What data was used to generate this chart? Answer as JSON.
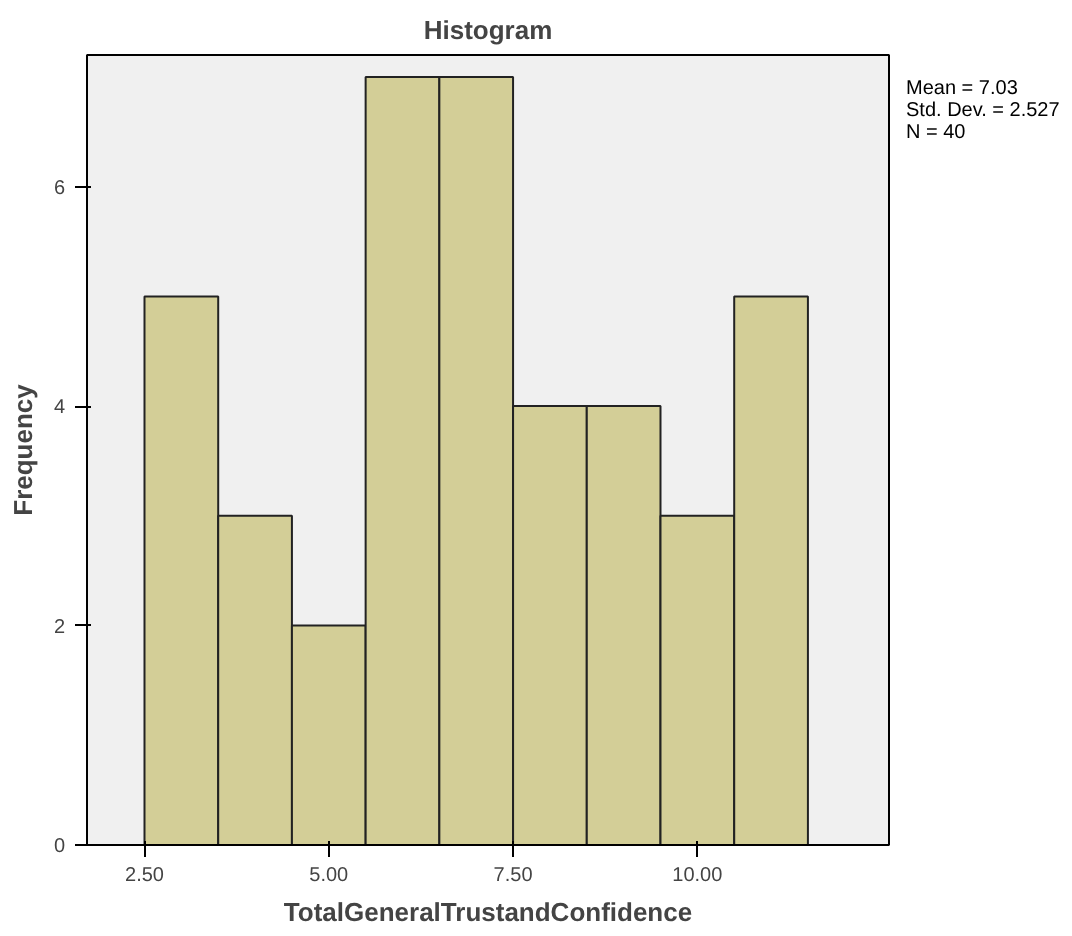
{
  "chart_data": {
    "type": "histogram",
    "title": "Histogram",
    "xlabel": "TotalGeneralTrustandConfidence",
    "ylabel": "Frequency",
    "bins": [
      2.5,
      3.5,
      4.5,
      5.5,
      6.5,
      7.5,
      8.5,
      9.5,
      10.5,
      11.5
    ],
    "values": [
      5,
      3,
      2,
      7,
      7,
      4,
      4,
      3,
      5
    ],
    "color": "#d3ce97",
    "xlim": [
      1.72,
      12.6
    ],
    "ylim": [
      0,
      7.2
    ],
    "xticks": [
      {
        "value": 2.5,
        "label": "2.50"
      },
      {
        "value": 5,
        "label": "5.00"
      },
      {
        "value": 7.5,
        "label": "7.50"
      },
      {
        "value": 10,
        "label": "10.00"
      }
    ],
    "yticks": [
      0,
      2,
      4,
      6
    ],
    "grid": false,
    "annotations": [
      "Mean = 7.03",
      "Std. Dev. = 2.527",
      "N = 40"
    ]
  }
}
